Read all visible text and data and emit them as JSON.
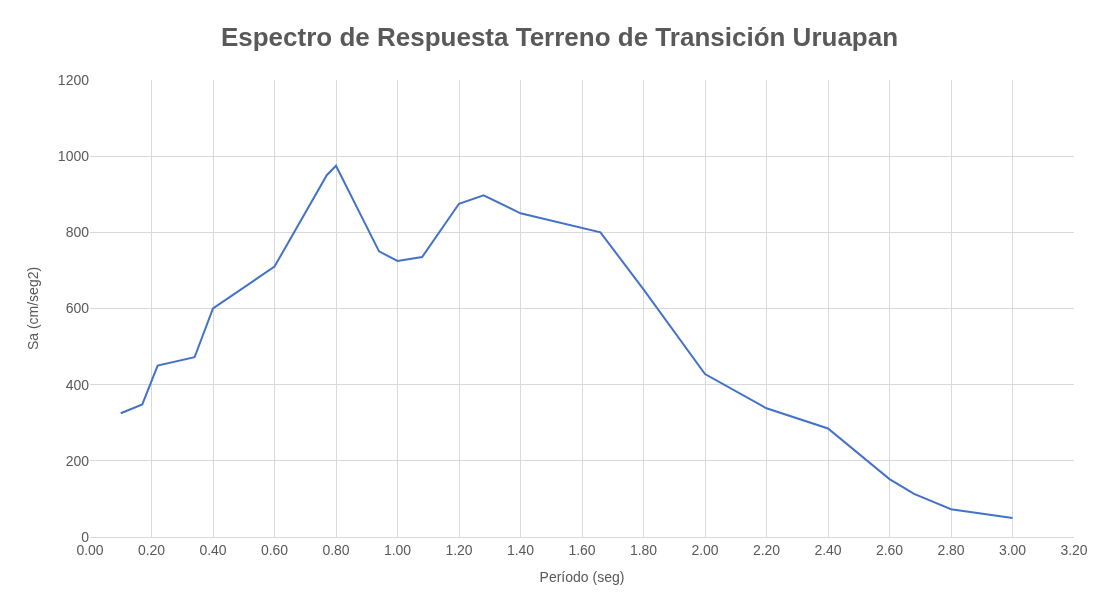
{
  "chart_data": {
    "type": "line",
    "title": "Espectro de Respuesta Terreno de Transición Uruapan",
    "xlabel": "Período (seg)",
    "ylabel": "Sa (cm/seg2)",
    "x": [
      0.1,
      0.17,
      0.22,
      0.34,
      0.4,
      0.6,
      0.77,
      0.8,
      0.94,
      1.0,
      1.08,
      1.2,
      1.28,
      1.4,
      1.66,
      1.8,
      2.0,
      2.2,
      2.4,
      2.6,
      2.68,
      2.8,
      3.0
    ],
    "series": [
      {
        "color": "#4472c4",
        "values": [
          325,
          348,
          450,
          472,
          600,
          710,
          950,
          975,
          750,
          725,
          735,
          875,
          897,
          850,
          800,
          650,
          428,
          338,
          285,
          152,
          113,
          73,
          50
        ]
      }
    ],
    "xlim": [
      0,
      3.2
    ],
    "xticks": [
      {
        "value": 0,
        "label": "0.00"
      },
      {
        "value": 0.2,
        "label": "0.20"
      },
      {
        "value": 0.4,
        "label": "0.40"
      },
      {
        "value": 0.6,
        "label": "0.60"
      },
      {
        "value": 0.8,
        "label": "0.80"
      },
      {
        "value": 1.0,
        "label": "1.00"
      },
      {
        "value": 1.2,
        "label": "1.20"
      },
      {
        "value": 1.4,
        "label": "1.40"
      },
      {
        "value": 1.6,
        "label": "1.60"
      },
      {
        "value": 1.8,
        "label": "1.80"
      },
      {
        "value": 2.0,
        "label": "2.00"
      },
      {
        "value": 2.2,
        "label": "2.20"
      },
      {
        "value": 2.4,
        "label": "2.40"
      },
      {
        "value": 2.6,
        "label": "2.60"
      },
      {
        "value": 2.8,
        "label": "2.80"
      },
      {
        "value": 3.0,
        "label": "3.00"
      },
      {
        "value": 3.2,
        "label": "3.20"
      }
    ],
    "ylim": [
      0,
      1200
    ],
    "yticks": [
      0,
      200,
      400,
      600,
      800,
      1000,
      1200
    ],
    "grid": true,
    "marker": "none",
    "line_style": "solid"
  }
}
